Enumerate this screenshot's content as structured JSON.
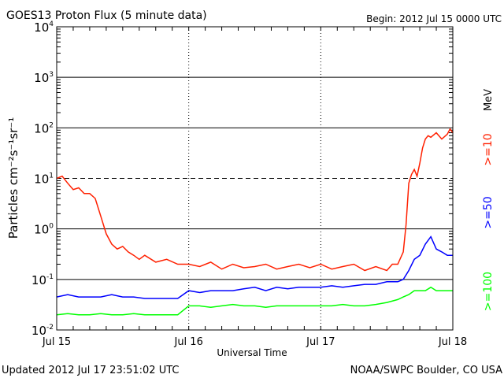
{
  "chart_data": {
    "type": "line",
    "title": "GOES13 Proton Flux (5 minute data)",
    "begin_label": "Begin: 2012 Jul 15 0000 UTC",
    "xlabel": "Universal Time",
    "ylabel": "Particles cm⁻²s⁻¹sr⁻¹",
    "yscale": "log",
    "ylim": [
      0.01,
      10000
    ],
    "xlim_hours": [
      0,
      72
    ],
    "yticks": [
      {
        "value": 10000,
        "base": "10",
        "exp": "4"
      },
      {
        "value": 1000,
        "base": "10",
        "exp": "3"
      },
      {
        "value": 100,
        "base": "10",
        "exp": "2"
      },
      {
        "value": 10,
        "base": "10",
        "exp": "1"
      },
      {
        "value": 1,
        "base": "10",
        "exp": "0"
      },
      {
        "value": 0.1,
        "base": "10",
        "exp": "-1"
      },
      {
        "value": 0.01,
        "base": "10",
        "exp": "-2"
      }
    ],
    "xticks": [
      {
        "hour": 0,
        "label": "Jul 15"
      },
      {
        "hour": 24,
        "label": "Jul 16"
      },
      {
        "hour": 48,
        "label": "Jul 17"
      },
      {
        "hour": 72,
        "label": "Jul 18"
      }
    ],
    "unit_label": "MeV",
    "series": [
      {
        "name": ">=10",
        "color": "#ff2000",
        "x": [
          0,
          1,
          2,
          3,
          4,
          5,
          6,
          7,
          8,
          8.5,
          9,
          10,
          11,
          12,
          13,
          14,
          15,
          16,
          18,
          20,
          22,
          24,
          26,
          28,
          30,
          32,
          34,
          36,
          38,
          40,
          42,
          44,
          46,
          48,
          50,
          52,
          54,
          56,
          58,
          60,
          61,
          62,
          63,
          63.5,
          64,
          64.5,
          65,
          65.5,
          66,
          66.5,
          67,
          67.5,
          68,
          69,
          70,
          71,
          71.5,
          72
        ],
        "y": [
          10,
          11,
          8,
          6,
          6.5,
          5,
          5,
          4,
          1.8,
          1.2,
          0.8,
          0.5,
          0.4,
          0.45,
          0.35,
          0.3,
          0.25,
          0.3,
          0.22,
          0.25,
          0.2,
          0.2,
          0.18,
          0.22,
          0.16,
          0.2,
          0.17,
          0.18,
          0.2,
          0.16,
          0.18,
          0.2,
          0.17,
          0.2,
          0.16,
          0.18,
          0.2,
          0.15,
          0.18,
          0.15,
          0.2,
          0.2,
          0.35,
          1.2,
          8,
          12,
          15,
          11,
          20,
          40,
          60,
          70,
          65,
          80,
          60,
          75,
          95,
          80
        ]
      },
      {
        "name": ">=50",
        "color": "#0000ff",
        "x": [
          0,
          2,
          4,
          6,
          8,
          10,
          12,
          14,
          16,
          18,
          20,
          22,
          24,
          26,
          28,
          30,
          32,
          34,
          36,
          38,
          40,
          42,
          44,
          46,
          48,
          50,
          52,
          54,
          56,
          58,
          60,
          62,
          63,
          64,
          65,
          66,
          67,
          68,
          69,
          70,
          71,
          72
        ],
        "y": [
          0.045,
          0.05,
          0.045,
          0.045,
          0.045,
          0.05,
          0.045,
          0.045,
          0.042,
          0.042,
          0.042,
          0.042,
          0.06,
          0.055,
          0.06,
          0.06,
          0.06,
          0.065,
          0.07,
          0.06,
          0.07,
          0.065,
          0.07,
          0.07,
          0.07,
          0.075,
          0.07,
          0.075,
          0.08,
          0.08,
          0.09,
          0.09,
          0.1,
          0.15,
          0.25,
          0.3,
          0.5,
          0.7,
          0.4,
          0.35,
          0.3,
          0.3
        ]
      },
      {
        "name": ">=100",
        "color": "#00ff00",
        "x": [
          0,
          2,
          4,
          6,
          8,
          10,
          12,
          14,
          16,
          18,
          20,
          22,
          24,
          26,
          28,
          30,
          32,
          34,
          36,
          38,
          40,
          42,
          44,
          46,
          48,
          50,
          52,
          54,
          56,
          58,
          60,
          62,
          63,
          64,
          65,
          66,
          67,
          68,
          69,
          70,
          71,
          72
        ],
        "y": [
          0.02,
          0.021,
          0.02,
          0.02,
          0.021,
          0.02,
          0.02,
          0.021,
          0.02,
          0.02,
          0.02,
          0.02,
          0.03,
          0.03,
          0.028,
          0.03,
          0.032,
          0.03,
          0.03,
          0.028,
          0.03,
          0.03,
          0.03,
          0.03,
          0.03,
          0.03,
          0.032,
          0.03,
          0.03,
          0.032,
          0.035,
          0.04,
          0.045,
          0.05,
          0.06,
          0.06,
          0.06,
          0.07,
          0.06,
          0.06,
          0.06,
          0.06
        ]
      }
    ]
  },
  "footer": {
    "updated": "Updated 2012 Jul 17 23:51:02 UTC",
    "source": "NOAA/SWPC Boulder, CO USA"
  }
}
